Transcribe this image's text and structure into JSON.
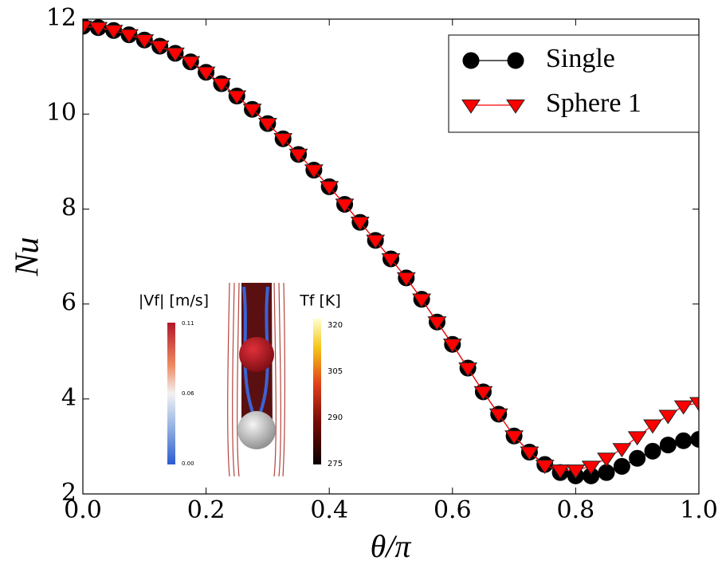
{
  "chart_data": {
    "type": "line",
    "xlabel": "θ/π",
    "ylabel": "Nu",
    "x": [
      0,
      0.025,
      0.05,
      0.075,
      0.1,
      0.125,
      0.15,
      0.175,
      0.2,
      0.225,
      0.25,
      0.275,
      0.3,
      0.325,
      0.35,
      0.375,
      0.4,
      0.425,
      0.45,
      0.475,
      0.5,
      0.525,
      0.55,
      0.575,
      0.6,
      0.625,
      0.65,
      0.675,
      0.7,
      0.725,
      0.75,
      0.775,
      0.8,
      0.825,
      0.85,
      0.875,
      0.9,
      0.925,
      0.95,
      0.975,
      1.0
    ],
    "series": [
      {
        "name": "Single",
        "color": "#000000",
        "marker": "circle",
        "values": [
          11.85,
          11.82,
          11.76,
          11.67,
          11.56,
          11.43,
          11.28,
          11.1,
          10.88,
          10.64,
          10.38,
          10.1,
          9.8,
          9.48,
          9.15,
          8.82,
          8.47,
          8.1,
          7.72,
          7.34,
          6.95,
          6.55,
          6.1,
          5.62,
          5.15,
          4.65,
          4.15,
          3.68,
          3.22,
          2.88,
          2.62,
          2.45,
          2.38,
          2.38,
          2.45,
          2.58,
          2.75,
          2.9,
          3.03,
          3.12,
          3.15
        ]
      },
      {
        "name": "Sphere 1",
        "color": "#ff0000",
        "marker": "triangle-down",
        "values": [
          11.85,
          11.82,
          11.76,
          11.67,
          11.56,
          11.43,
          11.28,
          11.1,
          10.88,
          10.64,
          10.38,
          10.1,
          9.8,
          9.48,
          9.15,
          8.82,
          8.47,
          8.1,
          7.72,
          7.34,
          6.95,
          6.55,
          6.1,
          5.62,
          5.15,
          4.65,
          4.15,
          3.68,
          3.22,
          2.88,
          2.6,
          2.5,
          2.5,
          2.58,
          2.75,
          2.95,
          3.2,
          3.45,
          3.65,
          3.85,
          3.92
        ]
      }
    ],
    "xlim": [
      0,
      1.0
    ],
    "ylim": [
      2,
      12
    ],
    "xticks": [
      {
        "value": 0,
        "label": "0.0"
      },
      0.2,
      0.4,
      0.6,
      0.8,
      {
        "value": 1.0,
        "label": "1.0"
      }
    ],
    "yticks": [
      2,
      4,
      6,
      8,
      10,
      12
    ],
    "legend": "upper right",
    "inset": {
      "velocity_label": "|Vf| [m/s]",
      "velocity_ticks": [
        "0.11",
        "0.06",
        "0.00"
      ],
      "temperature_label": "Tf [K]",
      "temperature_ticks": [
        "320",
        "305",
        "290",
        "275"
      ]
    }
  }
}
